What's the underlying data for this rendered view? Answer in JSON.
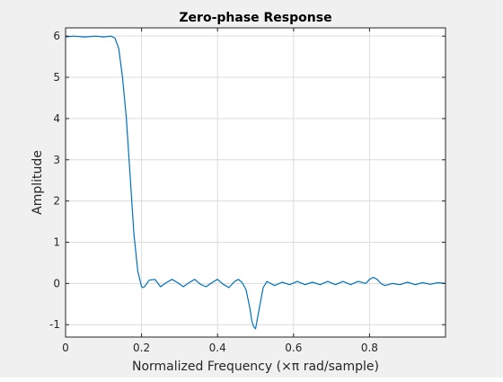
{
  "chart_data": {
    "type": "line",
    "title": "Zero-phase Response",
    "xlabel": "Normalized Frequency  (×π rad/sample)",
    "ylabel": "Amplitude",
    "xlim": [
      0,
      1
    ],
    "ylim": [
      -1.3,
      6.2
    ],
    "xticks": [
      0,
      0.2,
      0.4,
      0.6,
      0.8
    ],
    "xtick_labels": [
      "0",
      "0.2",
      "0.4",
      "0.6",
      "0.8"
    ],
    "yticks": [
      -1,
      0,
      1,
      2,
      3,
      4,
      5,
      6
    ],
    "ytick_labels": [
      "-1",
      "0",
      "1",
      "2",
      "3",
      "4",
      "5",
      "6"
    ],
    "grid": true,
    "series": [
      {
        "color": "#0072bd",
        "x": [
          0,
          0.02,
          0.05,
          0.08,
          0.1,
          0.12,
          0.13,
          0.14,
          0.15,
          0.16,
          0.17,
          0.18,
          0.19,
          0.2,
          0.205,
          0.21,
          0.22,
          0.235,
          0.25,
          0.265,
          0.28,
          0.295,
          0.31,
          0.325,
          0.34,
          0.355,
          0.37,
          0.385,
          0.4,
          0.415,
          0.43,
          0.445,
          0.455,
          0.465,
          0.475,
          0.485,
          0.49,
          0.495,
          0.5,
          0.51,
          0.52,
          0.53,
          0.54,
          0.55,
          0.57,
          0.59,
          0.61,
          0.63,
          0.65,
          0.67,
          0.69,
          0.71,
          0.73,
          0.75,
          0.77,
          0.79,
          0.8,
          0.81,
          0.82,
          0.83,
          0.84,
          0.86,
          0.88,
          0.9,
          0.92,
          0.94,
          0.96,
          0.98,
          1.0
        ],
        "values": [
          5.98,
          6.0,
          5.98,
          6.0,
          5.98,
          6.0,
          5.95,
          5.7,
          5.0,
          4.0,
          2.6,
          1.2,
          0.3,
          -0.08,
          -0.1,
          -0.05,
          0.08,
          0.1,
          -0.08,
          0.02,
          0.1,
          0.02,
          -0.08,
          0.02,
          0.1,
          -0.02,
          -0.08,
          0.02,
          0.1,
          -0.02,
          -0.1,
          0.05,
          0.1,
          0.02,
          -0.15,
          -0.6,
          -0.9,
          -1.05,
          -1.1,
          -0.6,
          -0.1,
          0.05,
          0.0,
          -0.05,
          0.03,
          -0.03,
          0.05,
          -0.03,
          0.03,
          -0.03,
          0.05,
          -0.03,
          0.05,
          -0.03,
          0.05,
          0.0,
          0.1,
          0.15,
          0.1,
          0.0,
          -0.05,
          0.0,
          -0.03,
          0.03,
          -0.03,
          0.02,
          -0.02,
          0.02,
          0.0
        ]
      }
    ]
  }
}
